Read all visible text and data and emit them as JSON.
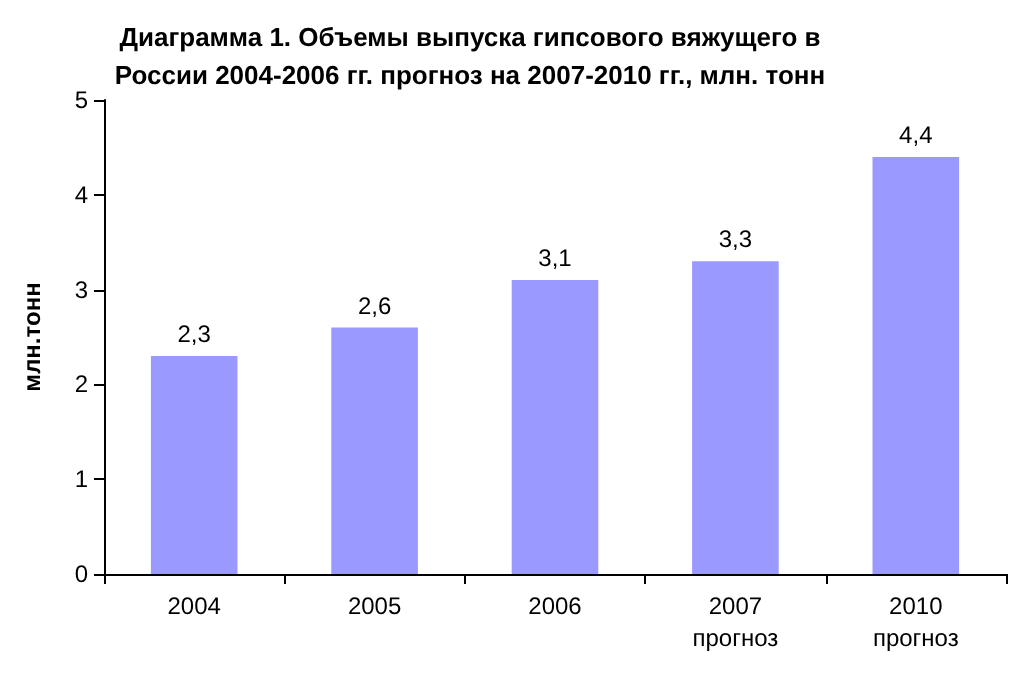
{
  "chart_data": {
    "type": "bar",
    "title": "Диаграмма 1. Объемы выпуска гипсового вяжущего в\nРоссии 2004-2006 гг. прогноз на 2007-2010 гг., млн. тонн",
    "ylabel": "млн.тонн",
    "categories": [
      "2004",
      "2005",
      "2006",
      "2007\nпрогноз",
      "2010\nпрогноз"
    ],
    "values": [
      2.3,
      2.6,
      3.1,
      3.3,
      4.4
    ],
    "value_labels": [
      "2,3",
      "2,6",
      "3,1",
      "3,3",
      "4,4"
    ],
    "color": "#9999ff",
    "ylim": [
      0,
      5
    ],
    "yticks": [
      0,
      1,
      2,
      3,
      4,
      5
    ],
    "grid": false
  }
}
